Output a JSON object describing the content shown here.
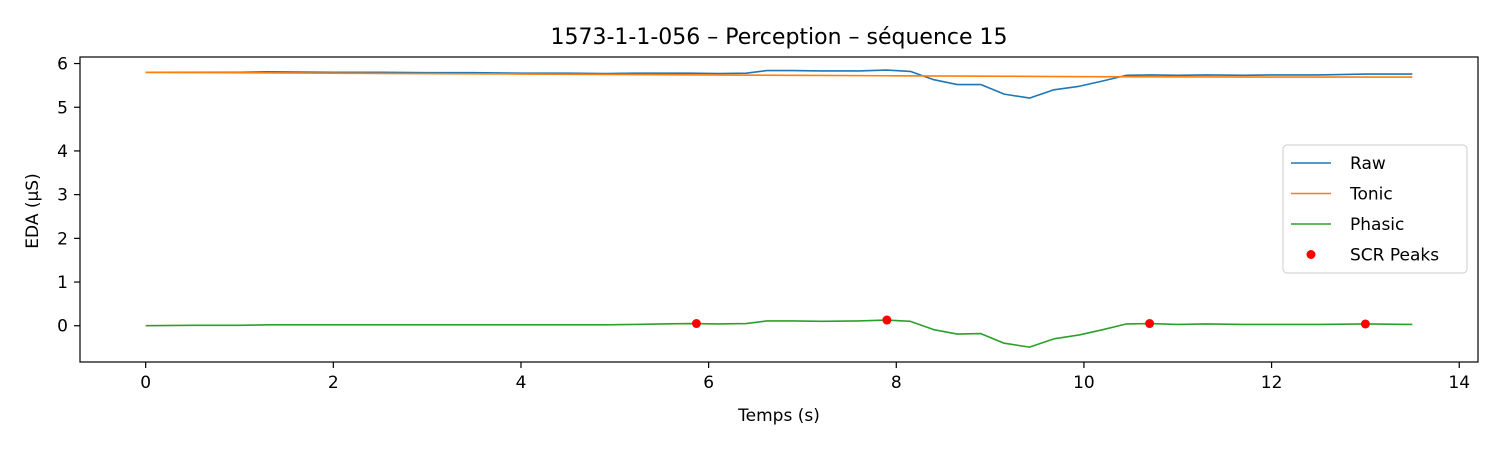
{
  "chart_data": {
    "type": "line",
    "title": "1573-1-1-056 – Perception – séquence 15",
    "xlabel": "Temps (s)",
    "ylabel": "EDA (µS)",
    "xlim": [
      -0.7,
      14.2
    ],
    "ylim": [
      -0.83,
      6.15
    ],
    "xticks": [
      0,
      2,
      4,
      6,
      8,
      10,
      12,
      14
    ],
    "yticks": [
      0,
      1,
      2,
      3,
      4,
      5,
      6
    ],
    "grid": false,
    "legend_position": "center-right",
    "series": [
      {
        "name": "Raw",
        "type": "line",
        "color": "#1f77b4",
        "x": [
          0,
          0.5,
          1.0,
          1.3,
          2.0,
          2.5,
          3.0,
          3.5,
          4.0,
          4.5,
          4.9,
          5.2,
          5.5,
          5.8,
          6.1,
          6.4,
          6.62,
          6.9,
          7.2,
          7.6,
          7.9,
          8.15,
          8.4,
          8.65,
          8.9,
          9.15,
          9.42,
          9.68,
          9.95,
          10.2,
          10.45,
          10.7,
          11.0,
          11.3,
          11.7,
          12.0,
          12.5,
          13.0,
          13.5
        ],
        "y": [
          5.8,
          5.8,
          5.8,
          5.81,
          5.8,
          5.8,
          5.79,
          5.79,
          5.78,
          5.78,
          5.77,
          5.78,
          5.78,
          5.78,
          5.77,
          5.78,
          5.84,
          5.84,
          5.83,
          5.83,
          5.85,
          5.82,
          5.63,
          5.52,
          5.52,
          5.3,
          5.21,
          5.4,
          5.48,
          5.6,
          5.73,
          5.74,
          5.73,
          5.74,
          5.73,
          5.74,
          5.74,
          5.76,
          5.76
        ]
      },
      {
        "name": "Tonic",
        "type": "line",
        "color": "#ff7f0e",
        "x": [
          0,
          2,
          4,
          6,
          8,
          10,
          12,
          13.5
        ],
        "y": [
          5.8,
          5.78,
          5.76,
          5.74,
          5.72,
          5.7,
          5.69,
          5.69
        ]
      },
      {
        "name": "Phasic",
        "type": "line",
        "color": "#2ca02c",
        "x": [
          0,
          0.5,
          1.0,
          1.3,
          2.0,
          2.5,
          3.0,
          3.5,
          4.0,
          4.5,
          4.9,
          5.2,
          5.5,
          5.8,
          6.1,
          6.4,
          6.62,
          6.9,
          7.2,
          7.6,
          7.9,
          8.15,
          8.4,
          8.65,
          8.9,
          9.15,
          9.42,
          9.68,
          9.95,
          10.2,
          10.45,
          10.7,
          11.0,
          11.3,
          11.7,
          12.0,
          12.5,
          13.0,
          13.5
        ],
        "y": [
          0.0,
          0.01,
          0.01,
          0.02,
          0.02,
          0.02,
          0.02,
          0.02,
          0.02,
          0.02,
          0.02,
          0.03,
          0.04,
          0.05,
          0.04,
          0.05,
          0.11,
          0.11,
          0.1,
          0.11,
          0.13,
          0.1,
          -0.09,
          -0.19,
          -0.18,
          -0.4,
          -0.49,
          -0.3,
          -0.21,
          -0.09,
          0.04,
          0.05,
          0.03,
          0.04,
          0.03,
          0.03,
          0.03,
          0.04,
          0.03
        ]
      },
      {
        "name": "SCR Peaks",
        "type": "scatter",
        "color": "#ff0000",
        "x": [
          5.87,
          7.9,
          10.7,
          13.0
        ],
        "y": [
          0.05,
          0.13,
          0.05,
          0.04
        ]
      }
    ]
  }
}
